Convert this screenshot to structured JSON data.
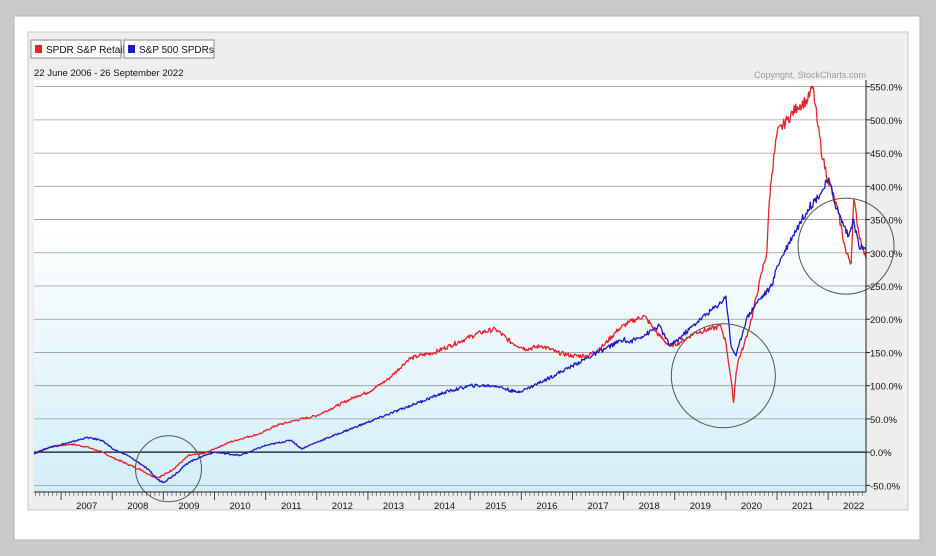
{
  "chart_data": {
    "type": "line",
    "date_range_label": "22 June 2006 - 26 September 2022",
    "copyright": "Copyright, StockCharts.com",
    "y_unit": "%",
    "ylim": [
      -60,
      560
    ],
    "y_ticks": [
      "550.0%",
      "500.0%",
      "450.0%",
      "400.0%",
      "350.0%",
      "300.0%",
      "250.0%",
      "200.0%",
      "150.0%",
      "100.0%",
      "50.0%",
      "0.0%",
      "-50.0%"
    ],
    "y_tick_values": [
      550,
      500,
      450,
      400,
      350,
      300,
      250,
      200,
      150,
      100,
      50,
      0,
      -50
    ],
    "xlim": [
      2006.47,
      2022.74
    ],
    "x_ticks": [
      "2007",
      "2008",
      "2009",
      "2010",
      "2011",
      "2012",
      "2013",
      "2014",
      "2015",
      "2016",
      "2017",
      "2018",
      "2019",
      "2020",
      "2021",
      "2022"
    ],
    "x_tick_values": [
      2007,
      2008,
      2009,
      2010,
      2011,
      2012,
      2013,
      2014,
      2015,
      2016,
      2017,
      2018,
      2019,
      2020,
      2021,
      2022
    ],
    "series": [
      {
        "name": "SPDR S&P Retail",
        "color": "#e8202a",
        "x": [
          2006.47,
          2006.8,
          2007.2,
          2007.5,
          2007.8,
          2008.0,
          2008.3,
          2008.6,
          2008.75,
          2008.9,
          2009.0,
          2009.2,
          2009.5,
          2009.8,
          2010.0,
          2010.3,
          2010.6,
          2010.9,
          2011.2,
          2011.6,
          2012.0,
          2012.4,
          2012.8,
          2013.0,
          2013.4,
          2013.8,
          2014.0,
          2014.3,
          2014.6,
          2014.9,
          2015.2,
          2015.5,
          2015.8,
          2016.1,
          2016.4,
          2016.7,
          2017.0,
          2017.3,
          2017.6,
          2017.9,
          2018.1,
          2018.4,
          2018.7,
          2018.9,
          2019.1,
          2019.4,
          2019.7,
          2019.9,
          2020.0,
          2020.1,
          2020.15,
          2020.2,
          2020.25,
          2020.35,
          2020.5,
          2020.7,
          2020.8,
          2020.85,
          2020.9,
          2020.95,
          2021.0,
          2021.2,
          2021.4,
          2021.6,
          2021.7,
          2021.8,
          2021.9,
          2022.0,
          2022.2,
          2022.35,
          2022.45,
          2022.5,
          2022.6,
          2022.74
        ],
        "y": [
          -2,
          8,
          12,
          8,
          0,
          -8,
          -18,
          -28,
          -35,
          -38,
          -35,
          -25,
          -5,
          -2,
          5,
          15,
          22,
          28,
          40,
          48,
          55,
          70,
          85,
          90,
          110,
          140,
          145,
          150,
          160,
          170,
          180,
          185,
          165,
          155,
          160,
          150,
          145,
          145,
          160,
          185,
          195,
          205,
          175,
          160,
          165,
          180,
          185,
          190,
          165,
          110,
          75,
          120,
          140,
          160,
          200,
          270,
          300,
          380,
          420,
          450,
          480,
          500,
          520,
          530,
          550,
          490,
          440,
          410,
          360,
          300,
          285,
          380,
          330,
          290
        ]
      },
      {
        "name": "S&P 500 SPDRs",
        "color": "#1a1ac8",
        "x": [
          2006.47,
          2006.8,
          2007.2,
          2007.5,
          2007.8,
          2008.0,
          2008.3,
          2008.6,
          2008.75,
          2008.9,
          2009.0,
          2009.2,
          2009.5,
          2009.8,
          2010.0,
          2010.5,
          2011.0,
          2011.5,
          2011.7,
          2012.0,
          2012.5,
          2013.0,
          2013.5,
          2014.0,
          2014.5,
          2015.0,
          2015.5,
          2015.9,
          2016.1,
          2016.5,
          2017.0,
          2017.5,
          2018.0,
          2018.1,
          2018.5,
          2018.7,
          2018.9,
          2019.0,
          2019.5,
          2019.9,
          2020.0,
          2020.1,
          2020.2,
          2020.4,
          2020.6,
          2020.9,
          2021.0,
          2021.3,
          2021.6,
          2021.9,
          2022.0,
          2022.2,
          2022.4,
          2022.5,
          2022.6,
          2022.74
        ],
        "y": [
          -2,
          8,
          15,
          22,
          18,
          5,
          -5,
          -20,
          -30,
          -42,
          -45,
          -35,
          -15,
          -5,
          0,
          -5,
          10,
          18,
          5,
          15,
          30,
          45,
          60,
          75,
          90,
          100,
          100,
          90,
          95,
          110,
          130,
          150,
          170,
          165,
          180,
          190,
          160,
          165,
          200,
          225,
          235,
          160,
          145,
          200,
          225,
          250,
          280,
          325,
          365,
          395,
          410,
          360,
          325,
          350,
          310,
          305
        ]
      }
    ],
    "annotations": [
      {
        "shape": "circle",
        "cx": 2009.1,
        "cy": -25
      },
      {
        "shape": "circle",
        "cx": 2019.95,
        "cy": 115
      },
      {
        "shape": "circle",
        "cx": 2022.35,
        "cy": 310
      }
    ]
  }
}
